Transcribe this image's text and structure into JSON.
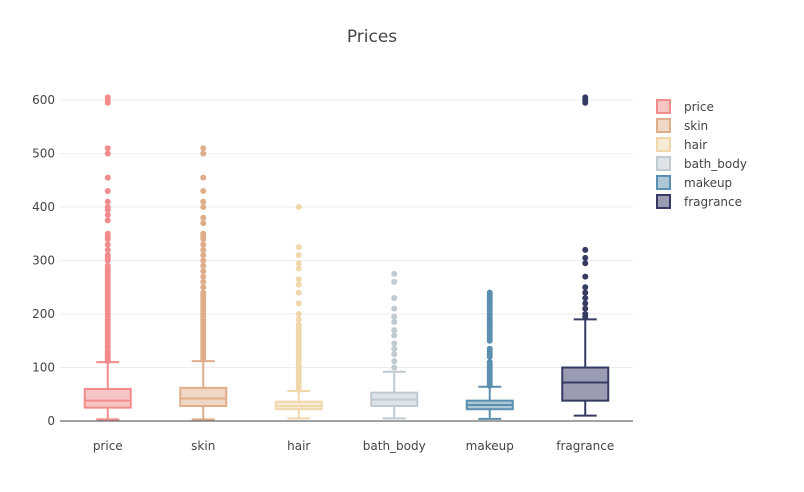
{
  "chart_data": {
    "type": "box",
    "title": "Prices",
    "xlabel": "",
    "ylabel": "",
    "ylim": [
      0,
      630
    ],
    "yticks": [
      0,
      100,
      200,
      300,
      400,
      500,
      600
    ],
    "grid": true,
    "legend_position": "top-right",
    "series": [
      {
        "name": "price",
        "color": "#f28b8b",
        "box": {
          "min": 3,
          "q1": 25,
          "median": 38,
          "q3": 60,
          "max": 110
        },
        "outliers": [
          112,
          115,
          118,
          120,
          125,
          128,
          130,
          135,
          140,
          145,
          150,
          155,
          160,
          165,
          170,
          175,
          180,
          185,
          190,
          195,
          200,
          205,
          210,
          215,
          220,
          225,
          230,
          235,
          240,
          245,
          250,
          255,
          260,
          265,
          270,
          275,
          280,
          285,
          290,
          300,
          305,
          310,
          320,
          330,
          340,
          345,
          350,
          375,
          385,
          395,
          400,
          410,
          430,
          455,
          500,
          510,
          595,
          600,
          605
        ]
      },
      {
        "name": "skin",
        "color": "#e0ad8b",
        "box": {
          "min": 3,
          "q1": 28,
          "median": 42,
          "q3": 62,
          "max": 112
        },
        "outliers": [
          115,
          120,
          125,
          130,
          135,
          140,
          145,
          150,
          155,
          160,
          165,
          170,
          175,
          180,
          185,
          190,
          195,
          200,
          205,
          210,
          215,
          220,
          225,
          230,
          235,
          240,
          250,
          260,
          270,
          280,
          290,
          300,
          310,
          320,
          330,
          340,
          345,
          350,
          370,
          380,
          400,
          410,
          430,
          455,
          500,
          510
        ]
      },
      {
        "name": "hair",
        "color": "#f0d7ac",
        "box": {
          "min": 5,
          "q1": 22,
          "median": 28,
          "q3": 36,
          "max": 56
        },
        "outliers": [
          58,
          62,
          65,
          70,
          75,
          80,
          85,
          90,
          95,
          100,
          105,
          110,
          115,
          120,
          125,
          130,
          135,
          140,
          145,
          150,
          155,
          160,
          165,
          170,
          175,
          180,
          190,
          200,
          220,
          240,
          255,
          265,
          285,
          295,
          310,
          325,
          400
        ]
      },
      {
        "name": "bath_body",
        "color": "#bfcad1",
        "box": {
          "min": 5,
          "q1": 28,
          "median": 40,
          "q3": 53,
          "max": 92
        },
        "outliers": [
          100,
          112,
          125,
          135,
          145,
          160,
          170,
          185,
          195,
          210,
          230,
          260,
          275
        ]
      },
      {
        "name": "makeup",
        "color": "#5b8fb0",
        "box": {
          "min": 4,
          "q1": 22,
          "median": 30,
          "q3": 38,
          "max": 64
        },
        "outliers": [
          66,
          70,
          75,
          80,
          85,
          90,
          95,
          100,
          105,
          110,
          120,
          125,
          130,
          135,
          150,
          155,
          160,
          165,
          170,
          175,
          180,
          185,
          190,
          195,
          200,
          205,
          210,
          215,
          220,
          225,
          230,
          235,
          240
        ]
      },
      {
        "name": "fragrance",
        "color": "#363b63",
        "box": {
          "min": 10,
          "q1": 38,
          "median": 72,
          "q3": 100,
          "max": 190
        },
        "outliers": [
          195,
          200,
          210,
          220,
          230,
          240,
          250,
          270,
          295,
          305,
          320,
          595,
          600,
          605
        ]
      }
    ]
  }
}
